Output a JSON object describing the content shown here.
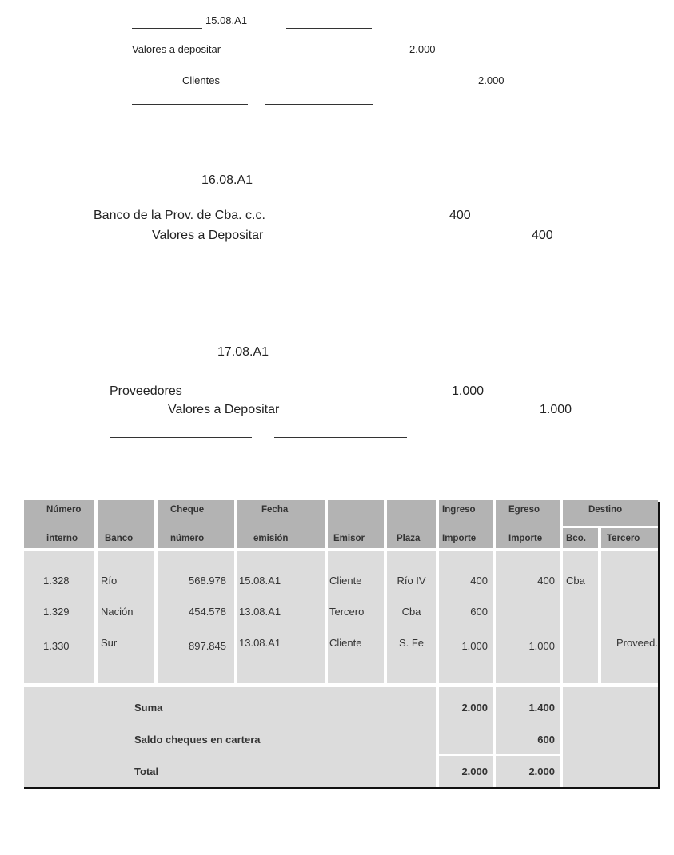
{
  "entries": [
    {
      "date": "15.08.A1",
      "debit_account": "Valores a depositar",
      "debit_amount": "2.000",
      "credit_account": "Clientes",
      "credit_amount": "2.000"
    },
    {
      "date": "16.08.A1",
      "debit_account": "Banco de la Prov. de Cba. c.c.",
      "debit_amount": "400",
      "credit_account": "Valores a Depositar",
      "credit_amount": "400"
    },
    {
      "date": "17.08.A1",
      "debit_account": "Proveedores",
      "debit_amount": "1.000",
      "credit_account": "Valores a Depositar",
      "credit_amount": "1.000"
    }
  ],
  "table": {
    "headers": {
      "numero": [
        "Número",
        "interno"
      ],
      "banco": "Banco",
      "cheque": [
        "Cheque",
        "número"
      ],
      "fecha": [
        "Fecha",
        "emisión"
      ],
      "emisor": "Emisor",
      "plaza": "Plaza",
      "ingreso": [
        "Ingreso",
        "Importe"
      ],
      "egreso": [
        "Egreso",
        "Importe"
      ],
      "destino": "Destino",
      "bco": "Bco.",
      "tercero": "Tercero"
    },
    "rows": [
      [
        "1.328",
        "Río",
        "568.978",
        "15.08.A1",
        "Cliente",
        "Río IV",
        "400",
        "400",
        "Cba",
        ""
      ],
      [
        "1.329",
        "Nación",
        "454.578",
        "13.08.A1",
        "Tercero",
        "Cba",
        "600",
        "",
        "",
        ""
      ],
      [
        "1.330",
        "Sur",
        "897.845",
        "13.08.A1",
        "Cliente",
        "S. Fe",
        "1.000",
        "1.000",
        "",
        "Proveed."
      ]
    ],
    "footer": {
      "suma_label": "Suma",
      "suma_ingreso": "2.000",
      "suma_egreso": "1.400",
      "saldo_label": "Saldo cheques en cartera",
      "saldo_egreso": "600",
      "total_label": "Total",
      "total_ingreso": "2.000",
      "total_egreso": "2.000"
    }
  }
}
